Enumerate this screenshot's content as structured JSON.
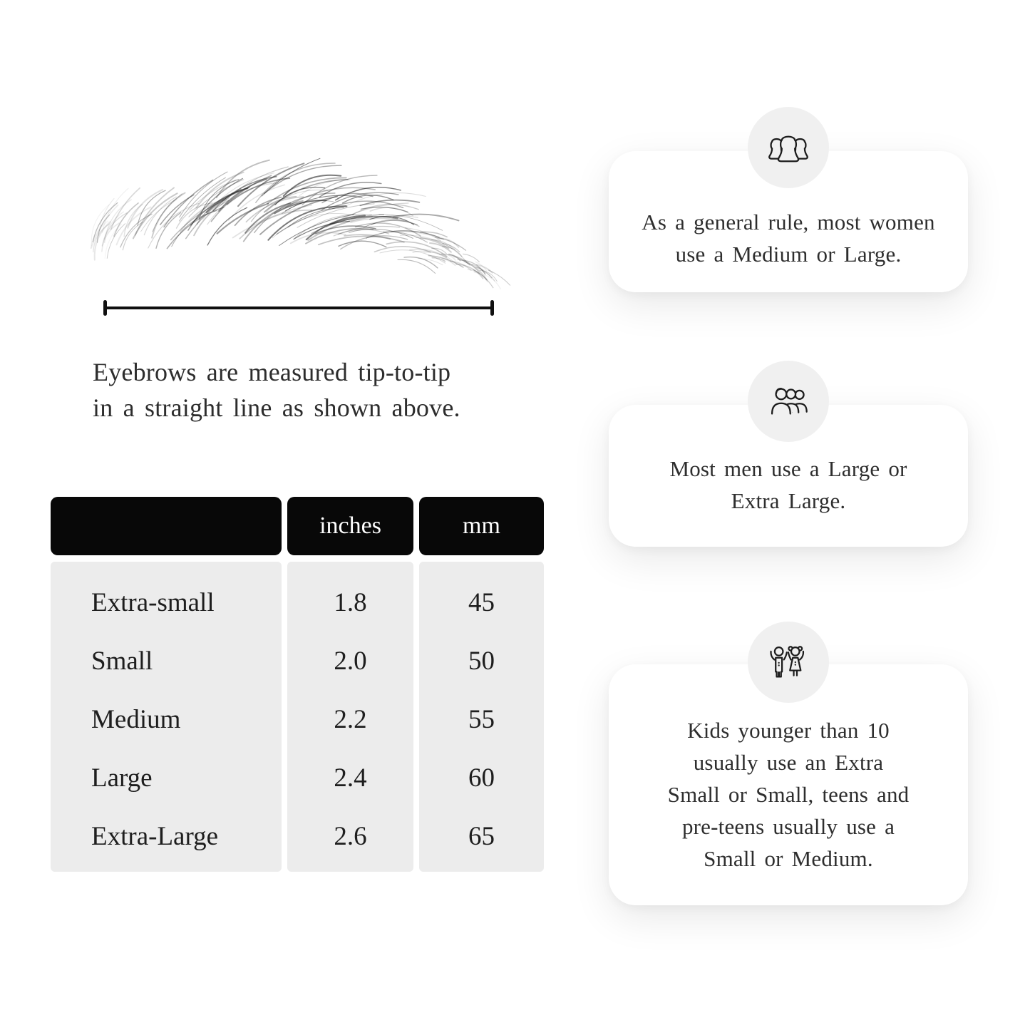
{
  "left": {
    "caption": "Eyebrows are measured tip-to-tip\nin a straight line as shown above."
  },
  "table": {
    "headers": {
      "size": "",
      "inches": "inches",
      "mm": "mm"
    },
    "rows": [
      {
        "label": "Extra-small",
        "inches": "1.8",
        "mm": "45"
      },
      {
        "label": "Small",
        "inches": "2.0",
        "mm": "50"
      },
      {
        "label": "Medium",
        "inches": "2.2",
        "mm": "55"
      },
      {
        "label": "Large",
        "inches": "2.4",
        "mm": "60"
      },
      {
        "label": "Extra-Large",
        "inches": "2.6",
        "mm": "65"
      }
    ]
  },
  "cards": [
    {
      "icon": "women-group-icon",
      "text": "As a general rule, most women\nuse a Medium or Large."
    },
    {
      "icon": "men-group-icon",
      "text": "Most men use a Large or\nExtra Large."
    },
    {
      "icon": "kids-icon",
      "text": "Kids younger than 10\nusually use an Extra\nSmall or Small, teens and\npre-teens usually use a\nSmall or Medium."
    }
  ],
  "colors": {
    "page_background": "#ffffff",
    "table_header": "#080808",
    "table_header_text": "#ffffff",
    "table_body": "#ececec",
    "icon_circle": "#f0f0f0",
    "text": "#2b2b2b",
    "line": "#101010"
  }
}
